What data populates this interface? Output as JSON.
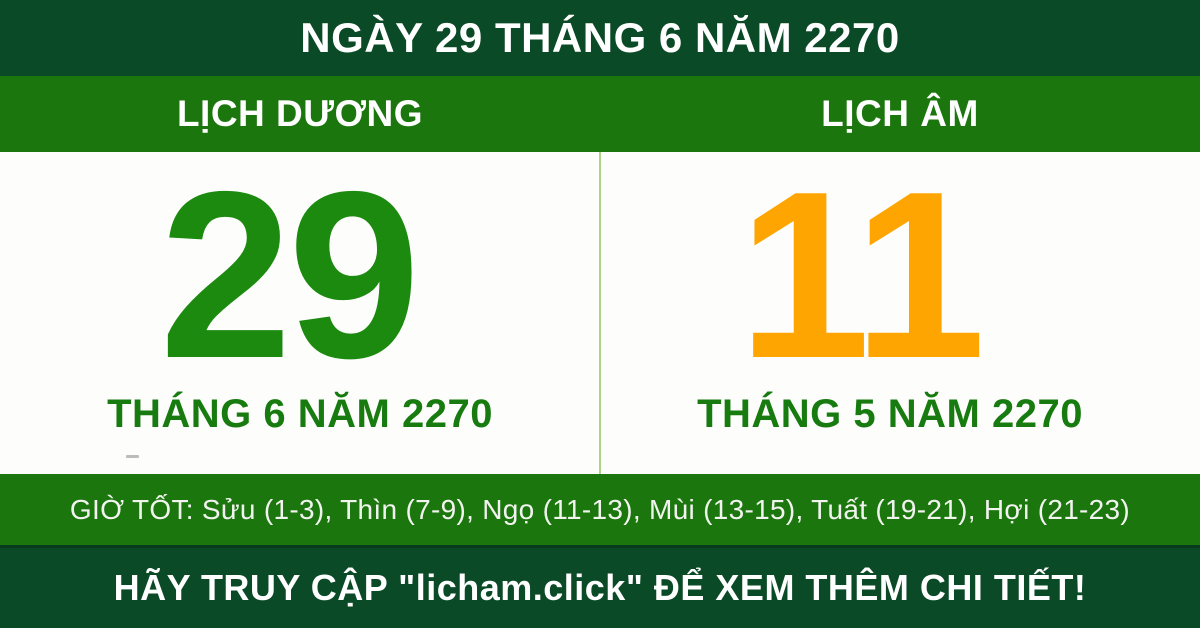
{
  "header": {
    "title": "NGÀY 29 THÁNG 6 NĂM 2270"
  },
  "solar": {
    "header": "LỊCH DƯƠNG",
    "day": "29",
    "month_year": "THÁNG 6 NĂM 2270"
  },
  "lunar": {
    "header": "LỊCH ÂM",
    "day": "11",
    "month_year": "THÁNG 5 NĂM 2270"
  },
  "good_hours": {
    "text": "GIỜ TỐT: Sửu (1-3), Thìn (7-9), Ngọ (11-13), Mùi (13-15), Tuất (19-21), Hợi (21-23)"
  },
  "footer": {
    "cta": "HÃY TRUY CẬP \"licham.click\" ĐỂ XEM THÊM CHI TIẾT!"
  },
  "colors": {
    "dark_green": "#0b4a26",
    "band_green": "#1c760e",
    "solar_day_green": "#1b8a0e",
    "lunar_day_orange": "#ffa502",
    "month_green": "#177b10",
    "divider_green": "#aed489",
    "text_white": "#ffffff"
  }
}
